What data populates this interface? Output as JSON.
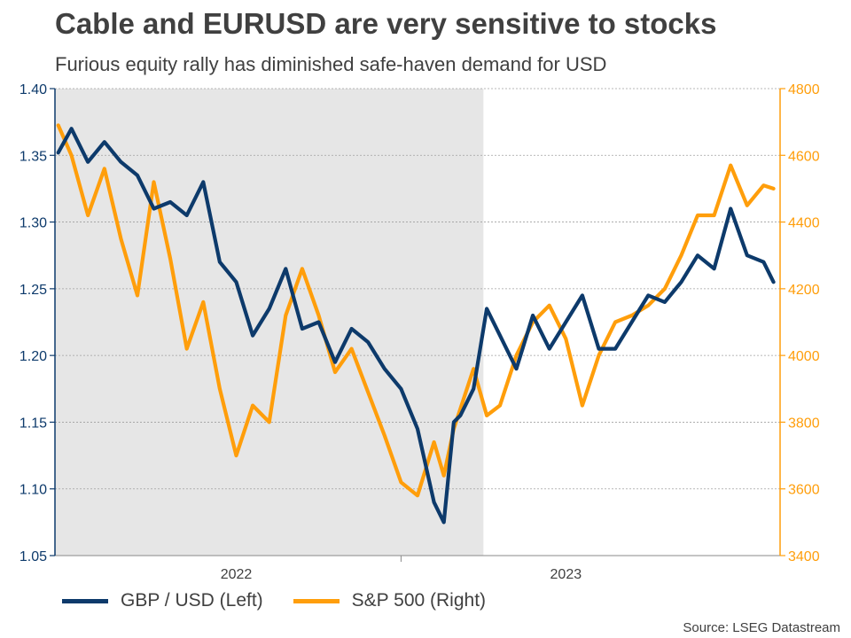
{
  "title": "Cable and EURUSD are very sensitive to stocks",
  "subtitle": "Furious equity rally has diminished safe-haven demand for USD",
  "source": "Source: LSEG Datastream",
  "colors": {
    "gbpusd": "#0d3a6b",
    "sp500": "#ff9e0b",
    "shade": "#e6e6e6",
    "grid": "#a0a0a0",
    "text": "#404040"
  },
  "chart_data": {
    "type": "line",
    "title": "Cable and EURUSD are very sensitive to stocks",
    "x_range": [
      2021.45,
      2023.65
    ],
    "x_ticks": [
      {
        "label": "2022",
        "value": 2022.0
      },
      {
        "label": "2023",
        "value": 2023.0
      }
    ],
    "x_dividers": [
      2022.5
    ],
    "shaded_region": [
      2021.45,
      2022.75
    ],
    "y_left": {
      "label": "GBP / USD (Left)",
      "range": [
        1.05,
        1.4
      ],
      "ticks": [
        "1.05",
        "1.10",
        "1.15",
        "1.20",
        "1.25",
        "1.30",
        "1.35",
        "1.40"
      ]
    },
    "y_right": {
      "label": "S&P 500 (Right)",
      "range": [
        3400,
        4800
      ],
      "ticks": [
        "3400",
        "3600",
        "3800",
        "4000",
        "4200",
        "4400",
        "4600",
        "4800"
      ]
    },
    "series": [
      {
        "name": "GBP / USD (Left)",
        "axis": "left",
        "x": [
          2021.46,
          2021.5,
          2021.55,
          2021.6,
          2021.65,
          2021.7,
          2021.75,
          2021.8,
          2021.85,
          2021.9,
          2021.95,
          2022.0,
          2022.05,
          2022.1,
          2022.15,
          2022.2,
          2022.25,
          2022.3,
          2022.35,
          2022.4,
          2022.45,
          2022.5,
          2022.55,
          2022.6,
          2022.63,
          2022.66,
          2022.68,
          2022.72,
          2022.76,
          2022.8,
          2022.85,
          2022.9,
          2022.95,
          2023.0,
          2023.05,
          2023.1,
          2023.15,
          2023.2,
          2023.25,
          2023.3,
          2023.35,
          2023.4,
          2023.45,
          2023.5,
          2023.55,
          2023.6,
          2023.63
        ],
        "values": [
          1.352,
          1.37,
          1.345,
          1.36,
          1.345,
          1.335,
          1.31,
          1.315,
          1.305,
          1.33,
          1.27,
          1.255,
          1.215,
          1.235,
          1.265,
          1.22,
          1.225,
          1.195,
          1.22,
          1.21,
          1.19,
          1.175,
          1.145,
          1.09,
          1.075,
          1.15,
          1.155,
          1.175,
          1.235,
          1.215,
          1.19,
          1.23,
          1.205,
          1.225,
          1.245,
          1.205,
          1.205,
          1.225,
          1.245,
          1.24,
          1.255,
          1.275,
          1.265,
          1.31,
          1.275,
          1.27,
          1.255
        ]
      },
      {
        "name": "S&P 500 (Right)",
        "axis": "right",
        "x": [
          2021.46,
          2021.5,
          2021.55,
          2021.6,
          2021.65,
          2021.7,
          2021.75,
          2021.8,
          2021.85,
          2021.9,
          2021.95,
          2022.0,
          2022.05,
          2022.1,
          2022.15,
          2022.2,
          2022.25,
          2022.3,
          2022.35,
          2022.4,
          2022.45,
          2022.5,
          2022.55,
          2022.6,
          2022.63,
          2022.66,
          2022.68,
          2022.72,
          2022.76,
          2022.8,
          2022.85,
          2022.9,
          2022.95,
          2023.0,
          2023.05,
          2023.1,
          2023.15,
          2023.2,
          2023.25,
          2023.3,
          2023.35,
          2023.4,
          2023.45,
          2023.5,
          2023.55,
          2023.6,
          2023.63
        ],
        "values": [
          4690,
          4600,
          4420,
          4560,
          4350,
          4180,
          4520,
          4290,
          4020,
          4160,
          3900,
          3700,
          3850,
          3800,
          4120,
          4260,
          4120,
          3950,
          4020,
          3890,
          3760,
          3620,
          3580,
          3740,
          3640,
          3780,
          3840,
          3960,
          3820,
          3850,
          4000,
          4100,
          4150,
          4050,
          3850,
          4000,
          4100,
          4120,
          4150,
          4200,
          4300,
          4420,
          4420,
          4570,
          4450,
          4510,
          4500
        ]
      }
    ]
  }
}
